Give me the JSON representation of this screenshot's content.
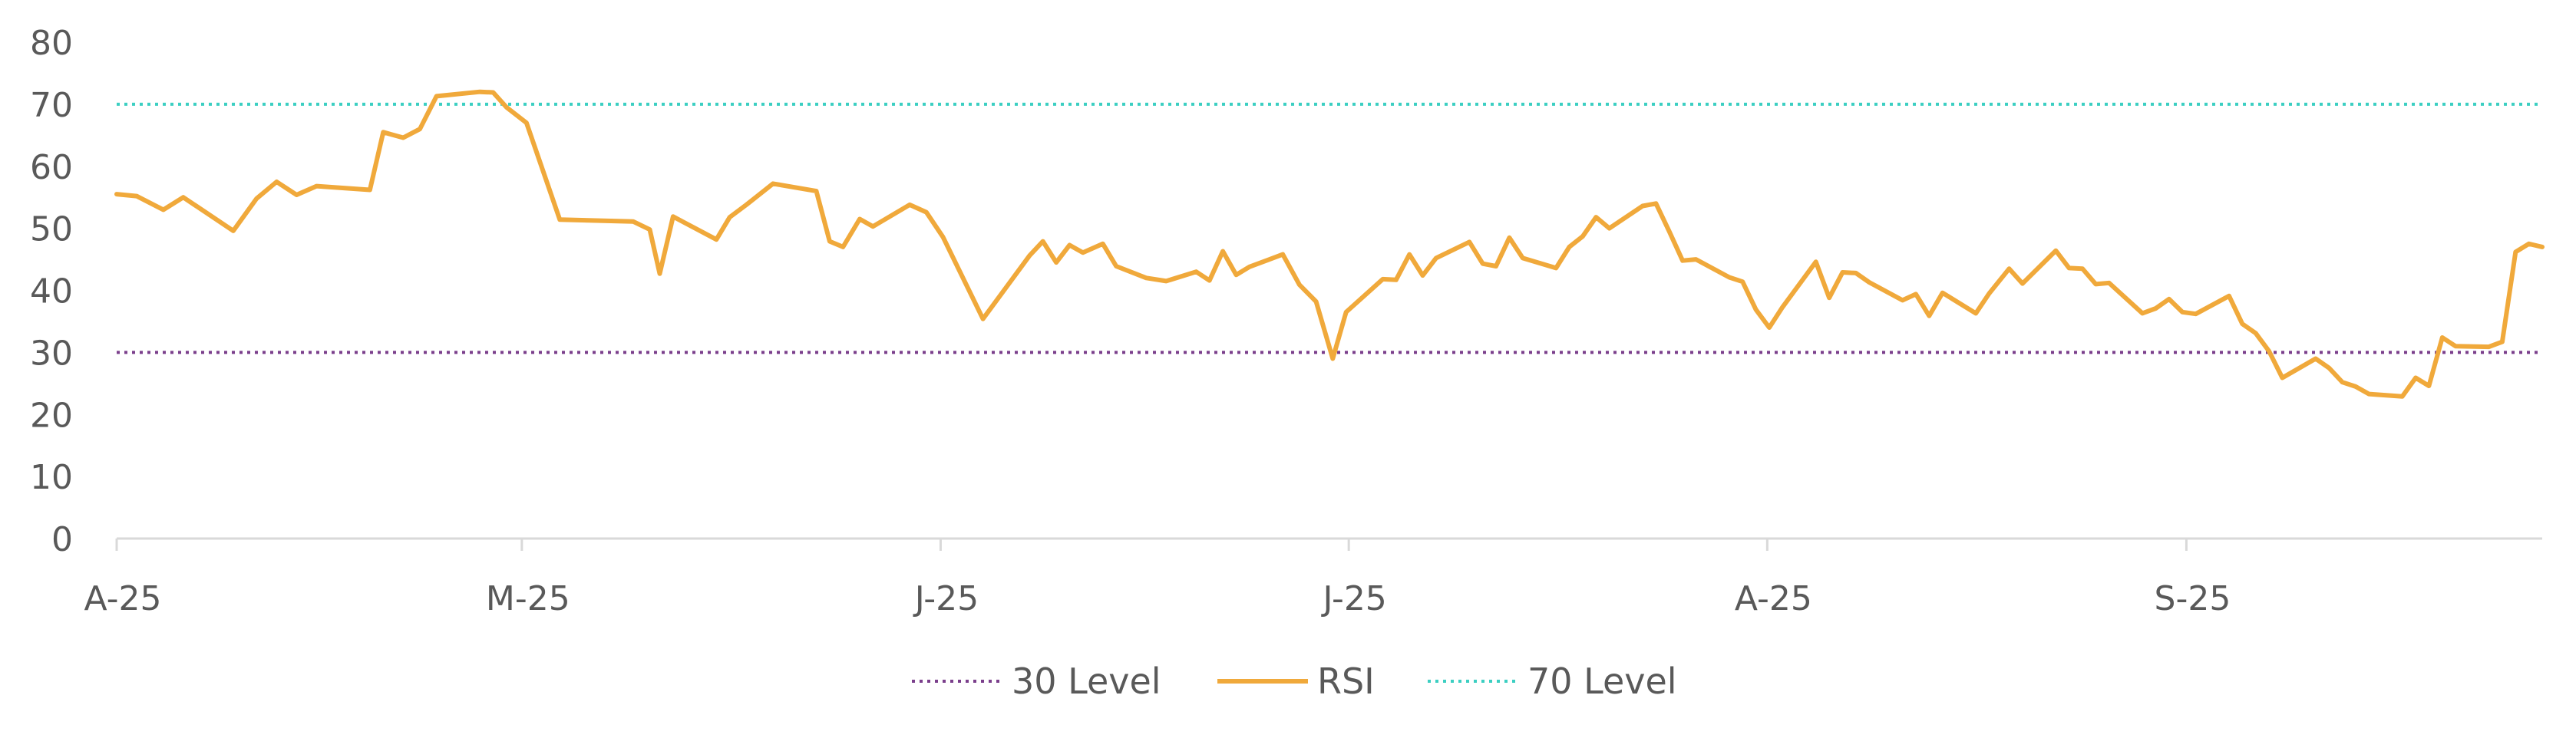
{
  "chart_data": {
    "type": "line",
    "title": "",
    "xlabel": "",
    "ylabel": "",
    "ylim": [
      0,
      80
    ],
    "y_ticks": [
      "0",
      "10",
      "20",
      "30",
      "40",
      "50",
      "60",
      "70",
      "80"
    ],
    "x_tick_labels": [
      "A-25",
      "M-25",
      "J-25",
      "J-25",
      "A-25",
      "S-25"
    ],
    "grid": false,
    "legend_position": "bottom",
    "colors": {
      "rsi": "#F0A93B",
      "level30": "#7B3F8C",
      "level70": "#3CCFC2",
      "axis": "#D9D9D9",
      "text": "#595959"
    },
    "series": [
      {
        "name": "RSI",
        "values": [
          55.5,
          55.2,
          53.0,
          55.0,
          49.6,
          54.8,
          57.5,
          55.4,
          56.8,
          56.2,
          65.5,
          64.6,
          66.0,
          71.3,
          72.0,
          71.9,
          69.5,
          67.0,
          51.4,
          51.1,
          49.8,
          42.7,
          51.9,
          48.2,
          51.8,
          53.8,
          57.2,
          56.0,
          47.9,
          47.0,
          51.5,
          50.3,
          53.8,
          52.6,
          48.6,
          35.4,
          45.6,
          47.9,
          44.5,
          47.3,
          46.1,
          47.5,
          43.9,
          42.0,
          41.5,
          43.0,
          41.6,
          46.3,
          42.5,
          43.8,
          45.8,
          40.9,
          38.2,
          29.0,
          36.5,
          41.8,
          41.7,
          45.8,
          42.4,
          45.2,
          47.8,
          44.3,
          43.9,
          48.5,
          45.2,
          43.6,
          47.0,
          48.7,
          51.8,
          50.0,
          53.6,
          54.0,
          49.5,
          44.8,
          45.0,
          42.1,
          41.4,
          36.9,
          34.0,
          37.3,
          44.6,
          38.8,
          42.9,
          42.8,
          41.3,
          38.4,
          39.4,
          35.9,
          39.6,
          36.3,
          39.5,
          43.5,
          41.1,
          46.4,
          43.6,
          43.5,
          41.0,
          41.2,
          36.3,
          37.1,
          38.6,
          36.5,
          36.2,
          39.1,
          34.6,
          33.1,
          30.2,
          25.9,
          29.0,
          27.5,
          25.2,
          24.5,
          23.3,
          22.9,
          25.9,
          24.6,
          32.4,
          31.0,
          30.9,
          31.7,
          46.2,
          47.5,
          47.0
        ],
        "x": [
          0.0,
          0.6,
          1.4,
          2.0,
          3.5,
          4.2,
          4.8,
          5.4,
          6.0,
          7.6,
          8.0,
          8.6,
          9.1,
          9.6,
          10.9,
          11.3,
          11.7,
          12.3,
          13.3,
          15.5,
          16.0,
          16.3,
          16.7,
          18.0,
          18.4,
          18.9,
          19.7,
          21.0,
          21.4,
          21.8,
          22.3,
          22.7,
          23.8,
          24.3,
          24.8,
          26.0,
          27.4,
          27.8,
          28.2,
          28.6,
          29.0,
          29.6,
          30.0,
          30.9,
          31.5,
          32.4,
          32.8,
          33.2,
          33.6,
          34.0,
          35.0,
          35.5,
          36.0,
          36.5,
          36.9,
          38.0,
          38.4,
          38.8,
          39.2,
          39.6,
          40.6,
          41.0,
          41.4,
          41.8,
          42.2,
          43.2,
          43.6,
          44.0,
          44.4,
          44.8,
          45.8,
          46.2,
          46.6,
          47.0,
          47.4,
          48.4,
          48.8,
          49.2,
          49.6,
          50.0,
          51.0,
          51.4,
          51.8,
          52.2,
          52.6,
          53.6,
          54.0,
          54.4,
          54.8,
          55.8,
          56.2,
          56.8,
          57.2,
          58.2,
          58.6,
          59.0,
          59.4,
          59.8,
          60.8,
          61.2,
          61.6,
          62.0,
          62.4,
          63.4,
          63.8,
          64.2,
          64.6,
          65.0,
          66.0,
          66.4,
          66.8,
          67.2,
          67.6,
          68.6,
          69.0,
          69.4,
          69.8,
          70.2,
          71.2,
          71.6,
          72.0,
          72.4,
          72.8
        ]
      },
      {
        "name": "30 Level",
        "value": 30
      },
      {
        "name": "70 Level",
        "value": 70
      }
    ],
    "x_range": [
      0,
      72.8
    ],
    "x_tick_positions": [
      0,
      12.16,
      24.73,
      36.98,
      49.54,
      62.12
    ]
  }
}
